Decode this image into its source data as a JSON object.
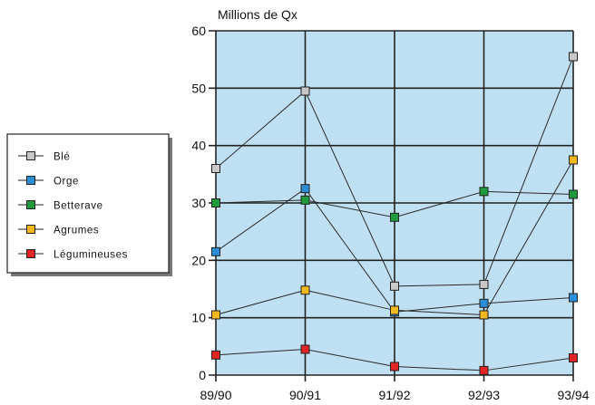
{
  "chart_data": {
    "type": "line",
    "title": "",
    "ylabel": "Millions de Qx",
    "xlabel": "",
    "categories": [
      "89/90",
      "90/91",
      "91/92",
      "92/93",
      "93/94"
    ],
    "ylim": [
      0,
      60
    ],
    "yticks": [
      "0",
      "10",
      "20",
      "30",
      "40",
      "50",
      "60"
    ],
    "grid": true,
    "legend_position": "left",
    "plot_background": "#bfe0f2",
    "series": [
      {
        "name": "Blé",
        "color": "#c8c8c8",
        "values": [
          36,
          49.5,
          15.5,
          15.8,
          55.5
        ]
      },
      {
        "name": "Orge",
        "color": "#2c8fd6",
        "values": [
          21.5,
          32.5,
          11,
          12.5,
          13.5
        ]
      },
      {
        "name": "Betterave",
        "color": "#1f9a3c",
        "values": [
          30,
          30.5,
          27.5,
          32,
          31.5
        ]
      },
      {
        "name": "Agrumes",
        "color": "#f2b81c",
        "values": [
          10.5,
          14.8,
          11.3,
          10.5,
          37.5
        ]
      },
      {
        "name": "Légumineuses",
        "color": "#e12424",
        "values": [
          3.5,
          4.5,
          1.5,
          0.8,
          3
        ]
      }
    ]
  }
}
